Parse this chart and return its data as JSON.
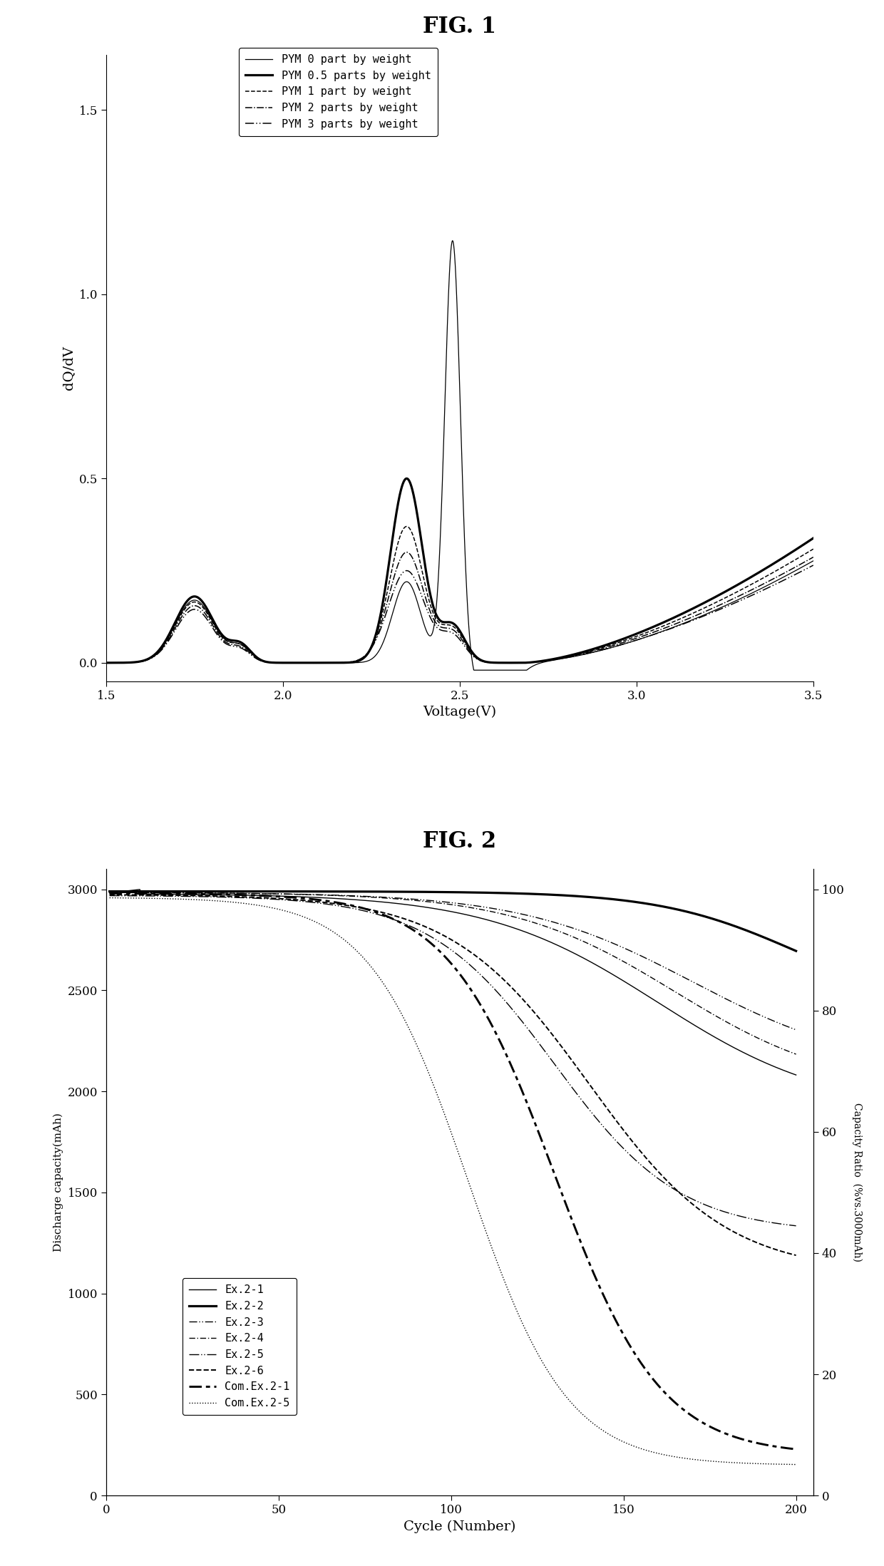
{
  "fig1_title": "FIG. 1",
  "fig2_title": "FIG. 2",
  "fig1": {
    "xlabel": "Voltage(V)",
    "ylabel": "dQ/dV",
    "xlim": [
      1.5,
      3.5
    ],
    "ylim": [
      -0.05,
      1.65
    ],
    "xticks": [
      1.5,
      2.0,
      2.5,
      3.0,
      3.5
    ],
    "yticks": [
      0.0,
      0.5,
      1.0,
      1.5
    ],
    "legend": [
      "PYM 0 part by weight",
      "PYM 0.5 parts by weight",
      "PYM 1 part by weight",
      "PYM 2 parts by weight",
      "PYM 3 parts by weight"
    ]
  },
  "fig2": {
    "xlabel": "Cycle (Number)",
    "ylabel_left": "Discharge capacity(mAh)",
    "ylabel_right": "Capacity Ratio  (%vs.3000mAh)",
    "xlim": [
      0,
      205
    ],
    "ylim_left": [
      0,
      3100
    ],
    "ylim_right": [
      0,
      103.33
    ],
    "xticks": [
      0,
      50,
      100,
      150,
      200
    ],
    "yticks_left": [
      0,
      500,
      1000,
      1500,
      2000,
      2500,
      3000
    ],
    "yticks_right": [
      0,
      20,
      40,
      60,
      80,
      100
    ],
    "legend": [
      "Ex.2-1",
      "Ex.2-2",
      "Ex.2-3",
      "Ex.2-4",
      "Ex.2-5",
      "Ex.2-6",
      "Com.Ex.2-1",
      "Com.Ex.2-5"
    ]
  }
}
